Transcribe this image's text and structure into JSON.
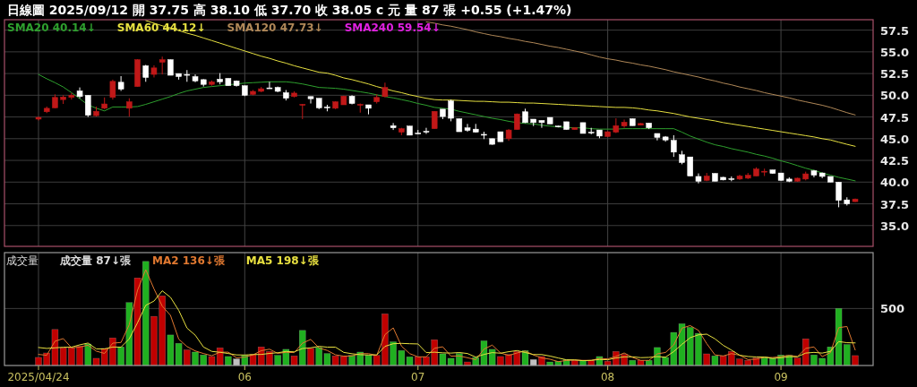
{
  "chart_data": [
    {
      "type": "candlestick",
      "title": "日線圖 2025/09/12 開 37.75 高 38.10 低 37.70 收 38.05 c 元 量 87 張 +0.55 (+1.47%)",
      "categories": [
        "2025/04/24",
        null,
        null,
        null,
        null,
        null,
        null,
        null,
        null,
        null,
        null,
        null,
        null,
        null,
        null,
        null,
        null,
        null,
        null,
        null,
        null,
        null,
        null,
        null,
        null,
        "06",
        null,
        null,
        null,
        null,
        null,
        null,
        null,
        null,
        null,
        null,
        null,
        null,
        null,
        null,
        null,
        null,
        null,
        null,
        null,
        null,
        "07",
        null,
        null,
        null,
        null,
        null,
        null,
        null,
        null,
        null,
        null,
        null,
        null,
        null,
        null,
        null,
        null,
        null,
        null,
        null,
        null,
        null,
        null,
        "08",
        null,
        null,
        null,
        null,
        null,
        null,
        null,
        null,
        null,
        null,
        null,
        null,
        null,
        null,
        null,
        null,
        null,
        null,
        null,
        null,
        "09",
        null,
        null,
        null,
        null,
        null,
        null,
        null,
        null,
        null
      ],
      "ohlc": [
        [
          47.25,
          47.55,
          47.1,
          47.45
        ],
        [
          48.1,
          48.7,
          47.95,
          48.5
        ],
        [
          48.55,
          50.1,
          48.5,
          49.75
        ],
        [
          49.5,
          50.0,
          49.0,
          49.8
        ],
        [
          49.75,
          50.25,
          49.5,
          50.0
        ],
        [
          50.5,
          50.9,
          49.65,
          49.85
        ],
        [
          50.0,
          50.0,
          47.5,
          47.7
        ],
        [
          47.65,
          48.7,
          47.55,
          48.15
        ],
        [
          48.5,
          49.75,
          48.4,
          49.0
        ],
        [
          49.75,
          51.8,
          49.5,
          51.6
        ],
        [
          51.5,
          52.2,
          50.5,
          50.7
        ],
        [
          48.5,
          49.65,
          47.55,
          49.25
        ],
        [
          51.0,
          54.15,
          51.0,
          54.1
        ],
        [
          53.4,
          53.5,
          51.55,
          52.05
        ],
        [
          52.4,
          53.45,
          52.05,
          53.15
        ],
        [
          53.8,
          54.45,
          52.4,
          54.1
        ],
        [
          54.1,
          54.1,
          52.3,
          52.3
        ],
        [
          52.5,
          52.5,
          51.8,
          52.15
        ],
        [
          52.4,
          52.9,
          51.55,
          52.35
        ],
        [
          52.15,
          52.4,
          51.5,
          51.65
        ],
        [
          51.8,
          51.85,
          51.0,
          51.25
        ],
        [
          51.25,
          51.7,
          51.1,
          51.55
        ],
        [
          51.85,
          52.55,
          51.25,
          51.55
        ],
        [
          51.95,
          51.95,
          51.1,
          51.1
        ],
        [
          51.65,
          51.7,
          51.0,
          51.1
        ],
        [
          51.1,
          51.1,
          49.9,
          50.0
        ],
        [
          50.1,
          50.6,
          50.0,
          50.45
        ],
        [
          50.45,
          50.95,
          50.35,
          50.75
        ],
        [
          50.85,
          51.55,
          50.8,
          50.8
        ],
        [
          50.9,
          51.0,
          50.35,
          50.45
        ],
        [
          50.3,
          50.6,
          49.4,
          49.65
        ],
        [
          49.85,
          50.45,
          49.75,
          50.25
        ],
        [
          48.85,
          49.0,
          47.25,
          48.95
        ],
        [
          49.85,
          49.85,
          49.05,
          49.6
        ],
        [
          49.65,
          49.65,
          48.4,
          48.55
        ],
        [
          48.65,
          48.9,
          48.15,
          48.6
        ],
        [
          48.5,
          49.3,
          48.4,
          49.25
        ],
        [
          48.9,
          49.95,
          48.9,
          49.9
        ],
        [
          49.9,
          50.0,
          48.95,
          49.05
        ],
        [
          48.85,
          49.05,
          48.0,
          48.95
        ],
        [
          48.9,
          48.9,
          47.8,
          48.5
        ],
        [
          49.25,
          50.1,
          49.05,
          49.75
        ],
        [
          49.85,
          51.45,
          49.75,
          50.9
        ],
        [
          46.5,
          46.8,
          46.0,
          46.25
        ],
        [
          45.75,
          46.25,
          45.4,
          46.15
        ],
        [
          46.45,
          46.45,
          45.4,
          45.4
        ],
        [
          45.65,
          46.0,
          45.55,
          45.6
        ],
        [
          45.85,
          46.25,
          45.55,
          45.8
        ],
        [
          46.15,
          48.15,
          46.15,
          48.15
        ],
        [
          48.4,
          48.4,
          47.25,
          47.55
        ],
        [
          49.35,
          49.5,
          47.0,
          47.35
        ],
        [
          47.3,
          47.3,
          45.8,
          45.8
        ],
        [
          46.25,
          46.7,
          45.8,
          45.95
        ],
        [
          46.1,
          46.7,
          45.7,
          45.75
        ],
        [
          45.5,
          45.8,
          44.95,
          45.45
        ],
        [
          45.0,
          45.0,
          44.3,
          44.35
        ],
        [
          45.8,
          45.8,
          44.65,
          44.65
        ],
        [
          45.0,
          46.1,
          44.75,
          46.0
        ],
        [
          46.05,
          47.9,
          46.05,
          47.85
        ],
        [
          48.1,
          48.45,
          46.8,
          46.85
        ],
        [
          47.25,
          47.25,
          46.45,
          46.85
        ],
        [
          47.1,
          47.1,
          46.25,
          46.85
        ],
        [
          47.45,
          47.45,
          46.7,
          46.7
        ],
        [
          46.45,
          46.5,
          46.3,
          46.4
        ],
        [
          46.95,
          46.95,
          46.05,
          46.05
        ],
        [
          46.05,
          46.3,
          46.05,
          46.25
        ],
        [
          46.85,
          46.85,
          45.6,
          45.6
        ],
        [
          45.75,
          46.25,
          45.5,
          45.7
        ],
        [
          46.0,
          46.0,
          45.05,
          45.3
        ],
        [
          45.25,
          45.85,
          45.2,
          45.8
        ],
        [
          45.75,
          47.35,
          45.65,
          46.5
        ],
        [
          46.45,
          47.2,
          46.25,
          46.9
        ],
        [
          47.3,
          47.3,
          46.5,
          46.5
        ],
        [
          46.55,
          46.8,
          46.55,
          46.75
        ],
        [
          46.8,
          46.8,
          46.1,
          46.25
        ],
        [
          45.6,
          45.6,
          44.8,
          45.15
        ],
        [
          45.2,
          45.3,
          44.65,
          44.85
        ],
        [
          44.8,
          45.4,
          42.9,
          43.45
        ],
        [
          43.15,
          43.6,
          42.05,
          42.25
        ],
        [
          42.9,
          42.9,
          40.7,
          40.7
        ],
        [
          40.65,
          41.0,
          39.85,
          40.1
        ],
        [
          40.2,
          41.05,
          40.1,
          40.7
        ],
        [
          41.0,
          41.0,
          40.1,
          40.1
        ],
        [
          40.55,
          40.6,
          40.2,
          40.25
        ],
        [
          40.4,
          40.65,
          40.1,
          40.35
        ],
        [
          40.35,
          40.85,
          40.25,
          40.7
        ],
        [
          40.45,
          41.05,
          40.35,
          40.8
        ],
        [
          40.7,
          41.7,
          40.7,
          41.5
        ],
        [
          41.2,
          41.55,
          40.7,
          41.25
        ],
        [
          41.4,
          41.4,
          40.95,
          41.0
        ],
        [
          41.05,
          41.05,
          40.15,
          40.2
        ],
        [
          40.35,
          40.55,
          40.0,
          40.1
        ],
        [
          40.1,
          40.5,
          40.05,
          40.45
        ],
        [
          40.35,
          41.2,
          40.2,
          40.95
        ],
        [
          41.3,
          41.4,
          40.55,
          40.8
        ],
        [
          41.05,
          41.1,
          40.45,
          40.65
        ],
        [
          40.65,
          40.65,
          40.0,
          40.0
        ],
        [
          40.0,
          40.0,
          37.1,
          37.9
        ],
        [
          37.95,
          38.25,
          37.3,
          37.5
        ],
        [
          37.75,
          38.1,
          37.7,
          38.05
        ]
      ],
      "series": [
        {
          "name": "SMA20 40.14↓",
          "type": "line",
          "color": "#2ea02e",
          "values": [
            52.4,
            51.9,
            51.45,
            50.95,
            50.3,
            49.6,
            48.9,
            48.5,
            48.2,
            48.65,
            48.65,
            48.65,
            48.7,
            48.95,
            49.25,
            49.55,
            49.85,
            50.2,
            50.5,
            50.7,
            50.9,
            51.0,
            51.1,
            51.2,
            51.3,
            51.4,
            51.45,
            51.5,
            51.55,
            51.55,
            51.55,
            51.45,
            51.3,
            51.1,
            50.9,
            50.85,
            50.8,
            50.7,
            50.55,
            50.4,
            50.25,
            50.05,
            49.85,
            49.7,
            49.5,
            49.3,
            49.05,
            48.85,
            48.6,
            48.5,
            48.4,
            48.15,
            47.95,
            47.75,
            47.55,
            47.35,
            47.2,
            47.0,
            46.85,
            46.75,
            46.7,
            46.55,
            46.45,
            46.35,
            46.3,
            46.25,
            46.25,
            46.15,
            46.1,
            46.1,
            46.1,
            46.15,
            46.15,
            46.15,
            46.15,
            46.15,
            46.15,
            46.15,
            45.75,
            45.3,
            44.95,
            44.6,
            44.3,
            44.1,
            43.85,
            43.65,
            43.45,
            43.2,
            43.0,
            42.75,
            42.45,
            42.2,
            41.9,
            41.6,
            41.35,
            41.05,
            40.8,
            40.55,
            40.35,
            40.14
          ]
        },
        {
          "name": "SMA60 44.12↓",
          "type": "line",
          "color": "#e6e040",
          "values": [
            null,
            null,
            null,
            null,
            null,
            null,
            null,
            null,
            null,
            null,
            null,
            null,
            null,
            58.6,
            58.3,
            58.0,
            57.75,
            57.45,
            57.15,
            56.9,
            56.6,
            56.3,
            56.0,
            55.7,
            55.4,
            55.1,
            54.8,
            54.5,
            54.25,
            53.95,
            53.7,
            53.4,
            53.15,
            52.9,
            52.65,
            52.55,
            52.3,
            52.0,
            51.8,
            51.55,
            51.3,
            51.0,
            50.75,
            50.5,
            50.3,
            50.05,
            49.85,
            49.65,
            49.5,
            49.45,
            49.45,
            49.4,
            49.35,
            49.3,
            49.3,
            49.25,
            49.2,
            49.2,
            49.15,
            49.1,
            49.1,
            49.05,
            49.0,
            48.95,
            48.9,
            48.85,
            48.8,
            48.75,
            48.7,
            48.65,
            48.6,
            48.6,
            48.55,
            48.45,
            48.3,
            48.2,
            48.05,
            47.9,
            47.7,
            47.5,
            47.35,
            47.2,
            47.05,
            46.85,
            46.7,
            46.55,
            46.4,
            46.25,
            46.1,
            45.95,
            45.8,
            45.65,
            45.5,
            45.35,
            45.2,
            45.0,
            44.85,
            44.6,
            44.35,
            44.12
          ]
        },
        {
          "name": "SMA120 47.73↓",
          "type": "line",
          "color": "#b08858",
          "values": [
            null,
            null,
            null,
            null,
            null,
            null,
            null,
            null,
            null,
            null,
            null,
            null,
            null,
            null,
            null,
            null,
            null,
            null,
            null,
            null,
            null,
            null,
            null,
            null,
            null,
            null,
            null,
            null,
            null,
            null,
            null,
            null,
            null,
            null,
            null,
            null,
            null,
            null,
            null,
            null,
            null,
            null,
            null,
            null,
            null,
            null,
            null,
            58.45,
            58.3,
            58.1,
            57.95,
            57.75,
            57.55,
            57.3,
            57.1,
            56.9,
            56.75,
            56.55,
            56.4,
            56.2,
            56.05,
            55.85,
            55.65,
            55.5,
            55.3,
            55.1,
            54.9,
            54.65,
            54.4,
            54.2,
            54.05,
            53.85,
            53.7,
            53.5,
            53.35,
            53.15,
            52.95,
            52.7,
            52.5,
            52.3,
            52.1,
            51.85,
            51.65,
            51.4,
            51.2,
            50.95,
            50.75,
            50.55,
            50.3,
            50.1,
            49.9,
            49.7,
            49.45,
            49.25,
            49.05,
            48.85,
            48.6,
            48.3,
            48.0,
            47.73
          ]
        }
      ],
      "annotations": [
        "SMA240 59.54↓"
      ],
      "ylim": [
        32.6,
        58.7
      ],
      "yticks": [
        {
          "value": 35,
          "label": "35.0"
        },
        37.5,
        {
          "value": 40,
          "label": "40.0"
        },
        42.5,
        {
          "value": 45,
          "label": "45.0"
        },
        47.5,
        {
          "value": 50,
          "label": "50.0"
        },
        52.5,
        {
          "value": 55,
          "label": "55.0"
        },
        57.5
      ],
      "grid": true,
      "legend": "top left",
      "tick_labels": "y"
    },
    {
      "type": "bar",
      "title": "成交量",
      "categories": [
        "2025/04/24",
        null,
        null,
        null,
        null,
        null,
        null,
        null,
        null,
        null,
        null,
        null,
        null,
        null,
        null,
        null,
        null,
        null,
        null,
        null,
        null,
        null,
        null,
        null,
        null,
        "06",
        null,
        null,
        null,
        null,
        null,
        null,
        null,
        null,
        null,
        null,
        null,
        null,
        null,
        null,
        null,
        null,
        null,
        null,
        null,
        null,
        "07",
        null,
        null,
        null,
        null,
        null,
        null,
        null,
        null,
        null,
        null,
        null,
        null,
        null,
        null,
        null,
        null,
        null,
        null,
        null,
        null,
        null,
        null,
        "08",
        null,
        null,
        null,
        null,
        null,
        null,
        null,
        null,
        null,
        null,
        null,
        null,
        null,
        null,
        null,
        null,
        null,
        null,
        null,
        null,
        "09",
        null,
        null,
        null,
        null,
        null,
        null,
        null,
        null,
        null
      ],
      "series": [
        {
          "name": "成交量 87↓張",
          "colors": [
            "#c00000",
            "#c00000",
            "#c00000",
            "#c00000",
            "#c00000",
            "#c00000",
            "#20b020",
            "#c00000",
            "#c00000",
            "#c00000",
            "#20b020",
            "#20b020",
            "#c00000",
            "#20b020",
            "#c00000",
            "#c00000",
            "#20b020",
            "#20b020",
            "#c00000",
            "#20b020",
            "#20b020",
            "#c00000",
            "#c00000",
            "#20b020",
            "#c0c0c0",
            "#20b020",
            "#c00000",
            "#c00000",
            "#c00000",
            "#20b020",
            "#20b020",
            "#c00000",
            "#20b020",
            "#c00000",
            "#20b020",
            "#20b020",
            "#c00000",
            "#c00000",
            "#20b020",
            "#20b020",
            "#20b020",
            "#c00000",
            "#c00000",
            "#20b020",
            "#20b020",
            "#20b020",
            "#c00000",
            "#c00000",
            "#c00000",
            "#20b020",
            "#20b020",
            "#20b020",
            "#c00000",
            "#20b020",
            "#20b020",
            "#20b020",
            "#c00000",
            "#c00000",
            "#c00000",
            "#20b020",
            "#c0c0c0",
            "#c00000",
            "#20b020",
            "#20b020",
            "#20b020",
            "#c00000",
            "#20b020",
            "#c00000",
            "#20b020",
            "#c00000",
            "#c00000",
            "#c00000",
            "#20b020",
            "#c00000",
            "#20b020",
            "#20b020",
            "#20b020",
            "#20b020",
            "#20b020",
            "#20b020",
            "#20b020",
            "#c00000",
            "#20b020",
            "#c00000",
            "#c00000",
            "#c00000",
            "#c00000",
            "#c00000",
            "#20b020",
            "#20b020",
            "#20b020",
            "#20b020",
            "#c00000",
            "#c00000",
            "#20b020",
            "#20b020",
            "#20b020",
            "#20b020",
            "#20b020",
            "#c00000"
          ],
          "values": [
            71,
            110,
            316,
            155,
            155,
            168,
            189,
            63,
            150,
            242,
            163,
            552,
            768,
            913,
            431,
            611,
            268,
            194,
            137,
            118,
            92,
            79,
            155,
            79,
            58,
            89,
            97,
            163,
            123,
            89,
            142,
            84,
            308,
            150,
            158,
            105,
            84,
            79,
            89,
            118,
            89,
            89,
            453,
            208,
            131,
            76,
            76,
            76,
            226,
            102,
            63,
            105,
            31,
            71,
            216,
            142,
            79,
            97,
            123,
            131,
            52,
            79,
            31,
            37,
            52,
            45,
            45,
            45,
            79,
            37,
            123,
            97,
            45,
            45,
            45,
            158,
            71,
            290,
            366,
            334,
            282,
            102,
            84,
            84,
            123,
            58,
            45,
            66,
            76,
            63,
            92,
            89,
            66,
            234,
            92,
            63,
            163,
            500,
            184,
            87
          ]
        },
        {
          "name": "MA2 136↓張",
          "type": "line",
          "color": "#e07830",
          "values": [
            97,
            90,
            213,
            236,
            155,
            162,
            178,
            126,
            106,
            196,
            202,
            358,
            660,
            840,
            672,
            521,
            440,
            231,
            166,
            128,
            105,
            86,
            117,
            117,
            68,
            74,
            93,
            130,
            143,
            106,
            116,
            113,
            196,
            229,
            154,
            132,
            94,
            82,
            84,
            104,
            104,
            89,
            271,
            330,
            170,
            104,
            76,
            76,
            151,
            164,
            82,
            84,
            68,
            51,
            144,
            179,
            110,
            88,
            110,
            127,
            92,
            66,
            55,
            34,
            44,
            48,
            45,
            45,
            62,
            58,
            80,
            110,
            71,
            45,
            45,
            102,
            114,
            180,
            328,
            350,
            308,
            192,
            93,
            84,
            104,
            90,
            52,
            56,
            71,
            70,
            78,
            90,
            78,
            150,
            163,
            78,
            113,
            332,
            342,
            136
          ]
        },
        {
          "name": "MA5 198↓張",
          "type": "line",
          "color": "#e8e040",
          "values": [
            158,
            150,
            155,
            160,
            161,
            181,
            197,
            146,
            145,
            162,
            161,
            234,
            375,
            528,
            565,
            655,
            598,
            483,
            328,
            266,
            162,
            124,
            116,
            105,
            93,
            92,
            96,
            97,
            106,
            112,
            123,
            120,
            149,
            155,
            168,
            161,
            161,
            115,
            103,
            95,
            92,
            93,
            168,
            191,
            194,
            191,
            189,
            113,
            117,
            111,
            109,
            114,
            105,
            74,
            97,
            113,
            108,
            121,
            131,
            114,
            96,
            96,
            83,
            66,
            50,
            49,
            42,
            45,
            53,
            50,
            66,
            76,
            76,
            69,
            71,
            78,
            73,
            122,
            186,
            244,
            269,
            275,
            234,
            177,
            135,
            90,
            79,
            75,
            74,
            62,
            68,
            77,
            77,
            109,
            115,
            109,
            124,
            210,
            200,
            198
          ]
        }
      ],
      "ylim": [
        0,
        990
      ],
      "yticks": [
        {
          "value": 0,
          "label": null
        },
        500
      ],
      "ref_lines": [
        {
          "axis": "y",
          "value": 500
        }
      ],
      "grid": "x",
      "legend": "top left"
    }
  ]
}
